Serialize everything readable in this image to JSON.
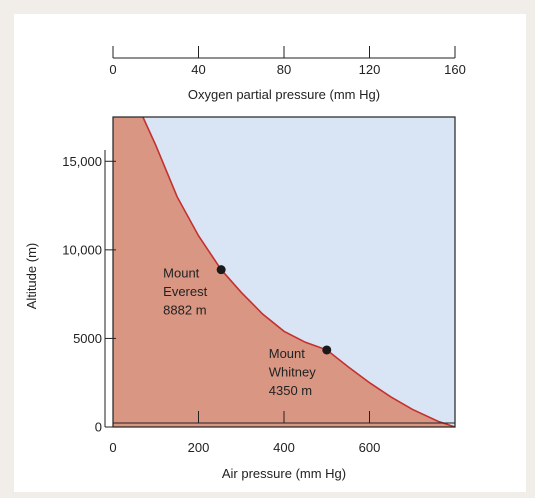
{
  "chart_data": {
    "type": "area",
    "xlabel": "Air pressure (mm Hg)",
    "x2label": "Oxygen partial pressure (mm Hg)",
    "ylabel": "Altitude (m)",
    "xlim": [
      0,
      800
    ],
    "x2lim": [
      0,
      160
    ],
    "ylim": [
      0,
      17500
    ],
    "xticks": [
      0,
      200,
      400,
      600
    ],
    "xtick_labels": [
      "0",
      "200",
      "400",
      "600"
    ],
    "x2ticks": [
      0,
      40,
      80,
      120,
      160
    ],
    "x2tick_labels": [
      "0",
      "40",
      "80",
      "120",
      "160"
    ],
    "yticks": [
      0,
      5000,
      10000,
      15000
    ],
    "ytick_labels": [
      "0",
      "5000",
      "10,000",
      "15,000"
    ],
    "grid": false,
    "curve": {
      "x": [
        70,
        100,
        150,
        200,
        253,
        300,
        350,
        400,
        450,
        500,
        550,
        600,
        650,
        700,
        760,
        800
      ],
      "y": [
        17500,
        15900,
        13000,
        10800,
        8882,
        7600,
        6380,
        5400,
        4780,
        4350,
        3400,
        2500,
        1700,
        1000,
        330,
        0
      ]
    },
    "points": [
      {
        "x": 253,
        "y": 8882,
        "label": [
          "Mount",
          "Everest",
          "8882 m"
        ]
      },
      {
        "x": 500,
        "y": 4350,
        "label": [
          "Mount",
          "Whitney",
          "4350 m"
        ]
      }
    ],
    "colors": {
      "below_fill": "#d99683",
      "above_fill": "#d9e5f4",
      "curve": "#c4312f",
      "point": "#1a1a1a"
    }
  }
}
